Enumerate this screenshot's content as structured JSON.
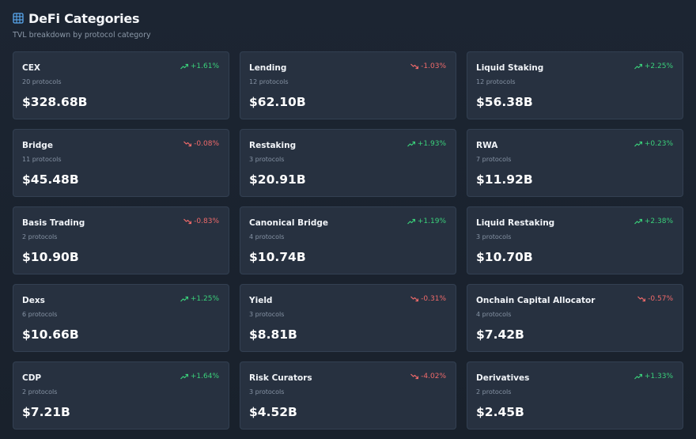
{
  "header": {
    "icon": "grid-icon",
    "title": "DeFi Categories",
    "subtitle": "TVL breakdown by protocol category"
  },
  "colors": {
    "background": "#1c2532",
    "card": "#273140",
    "positive": "#3ad07a",
    "negative": "#f06a6a",
    "accent_icon": "#5aa9f0"
  },
  "categories": [
    {
      "name": "CEX",
      "protocols": "20 protocols",
      "tvl": "$328.68B",
      "change": "+1.61%",
      "direction": "up"
    },
    {
      "name": "Lending",
      "protocols": "12 protocols",
      "tvl": "$62.10B",
      "change": "-1.03%",
      "direction": "down"
    },
    {
      "name": "Liquid Staking",
      "protocols": "12 protocols",
      "tvl": "$56.38B",
      "change": "+2.25%",
      "direction": "up"
    },
    {
      "name": "Bridge",
      "protocols": "11 protocols",
      "tvl": "$45.48B",
      "change": "-0.08%",
      "direction": "down"
    },
    {
      "name": "Restaking",
      "protocols": "3 protocols",
      "tvl": "$20.91B",
      "change": "+1.93%",
      "direction": "up"
    },
    {
      "name": "RWA",
      "protocols": "7 protocols",
      "tvl": "$11.92B",
      "change": "+0.23%",
      "direction": "up"
    },
    {
      "name": "Basis Trading",
      "protocols": "2 protocols",
      "tvl": "$10.90B",
      "change": "-0.83%",
      "direction": "down"
    },
    {
      "name": "Canonical Bridge",
      "protocols": "4 protocols",
      "tvl": "$10.74B",
      "change": "+1.19%",
      "direction": "up"
    },
    {
      "name": "Liquid Restaking",
      "protocols": "3 protocols",
      "tvl": "$10.70B",
      "change": "+2.38%",
      "direction": "up"
    },
    {
      "name": "Dexs",
      "protocols": "6 protocols",
      "tvl": "$10.66B",
      "change": "+1.25%",
      "direction": "up"
    },
    {
      "name": "Yield",
      "protocols": "3 protocols",
      "tvl": "$8.81B",
      "change": "-0.31%",
      "direction": "down"
    },
    {
      "name": "Onchain Capital Allocator",
      "protocols": "4 protocols",
      "tvl": "$7.42B",
      "change": "-0.57%",
      "direction": "down"
    },
    {
      "name": "CDP",
      "protocols": "2 protocols",
      "tvl": "$7.21B",
      "change": "+1.64%",
      "direction": "up"
    },
    {
      "name": "Risk Curators",
      "protocols": "3 protocols",
      "tvl": "$4.52B",
      "change": "-4.02%",
      "direction": "down"
    },
    {
      "name": "Derivatives",
      "protocols": "2 protocols",
      "tvl": "$2.45B",
      "change": "+1.33%",
      "direction": "up"
    }
  ]
}
